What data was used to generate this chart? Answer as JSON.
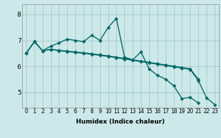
{
  "title": "",
  "xlabel": "Humidex (Indice chaleur)",
  "bg_color": "#cce8e8",
  "grid_color": "#aacccc",
  "line_color": "#006868",
  "markersize": 2.5,
  "linewidth": 1.0,
  "xlim": [
    -0.5,
    23.5
  ],
  "ylim": [
    4.4,
    8.4
  ],
  "yticks": [
    5,
    6,
    7,
    8
  ],
  "xticks": [
    0,
    1,
    2,
    3,
    4,
    5,
    6,
    7,
    8,
    9,
    10,
    11,
    12,
    13,
    14,
    15,
    16,
    17,
    18,
    19,
    20,
    21,
    22,
    23
  ],
  "line1_x": [
    0,
    1,
    2,
    3,
    4,
    5,
    6,
    7,
    8,
    9,
    10,
    11,
    12,
    13,
    14,
    15,
    16,
    17,
    18,
    19,
    20,
    21
  ],
  "line1_y": [
    6.5,
    6.95,
    6.6,
    6.78,
    6.9,
    7.05,
    7.0,
    6.95,
    7.2,
    7.0,
    7.5,
    7.85,
    6.35,
    6.25,
    6.55,
    5.9,
    5.65,
    5.5,
    5.25,
    4.75,
    4.8,
    4.58
  ],
  "line2_x": [
    0,
    1,
    2,
    3,
    4,
    5,
    6,
    7,
    8,
    9,
    10,
    11,
    12,
    13,
    14,
    15,
    16,
    17,
    18,
    19,
    20,
    21,
    22,
    23
  ],
  "line2_y": [
    6.5,
    6.95,
    6.6,
    6.65,
    6.6,
    6.57,
    6.53,
    6.5,
    6.46,
    6.42,
    6.38,
    6.33,
    6.28,
    6.23,
    6.18,
    6.13,
    6.08,
    6.03,
    5.98,
    5.93,
    5.88,
    5.45,
    4.78,
    4.52
  ],
  "line3_x": [
    0,
    1,
    2,
    3,
    4,
    5,
    6,
    7,
    8,
    9,
    10,
    11,
    12,
    13,
    14,
    15,
    16,
    17,
    18,
    19,
    20,
    21
  ],
  "line3_y": [
    6.5,
    6.95,
    6.6,
    6.65,
    6.62,
    6.58,
    6.55,
    6.52,
    6.48,
    6.44,
    6.4,
    6.35,
    6.3,
    6.25,
    6.2,
    6.15,
    6.1,
    6.05,
    6.0,
    5.95,
    5.9,
    5.5
  ]
}
